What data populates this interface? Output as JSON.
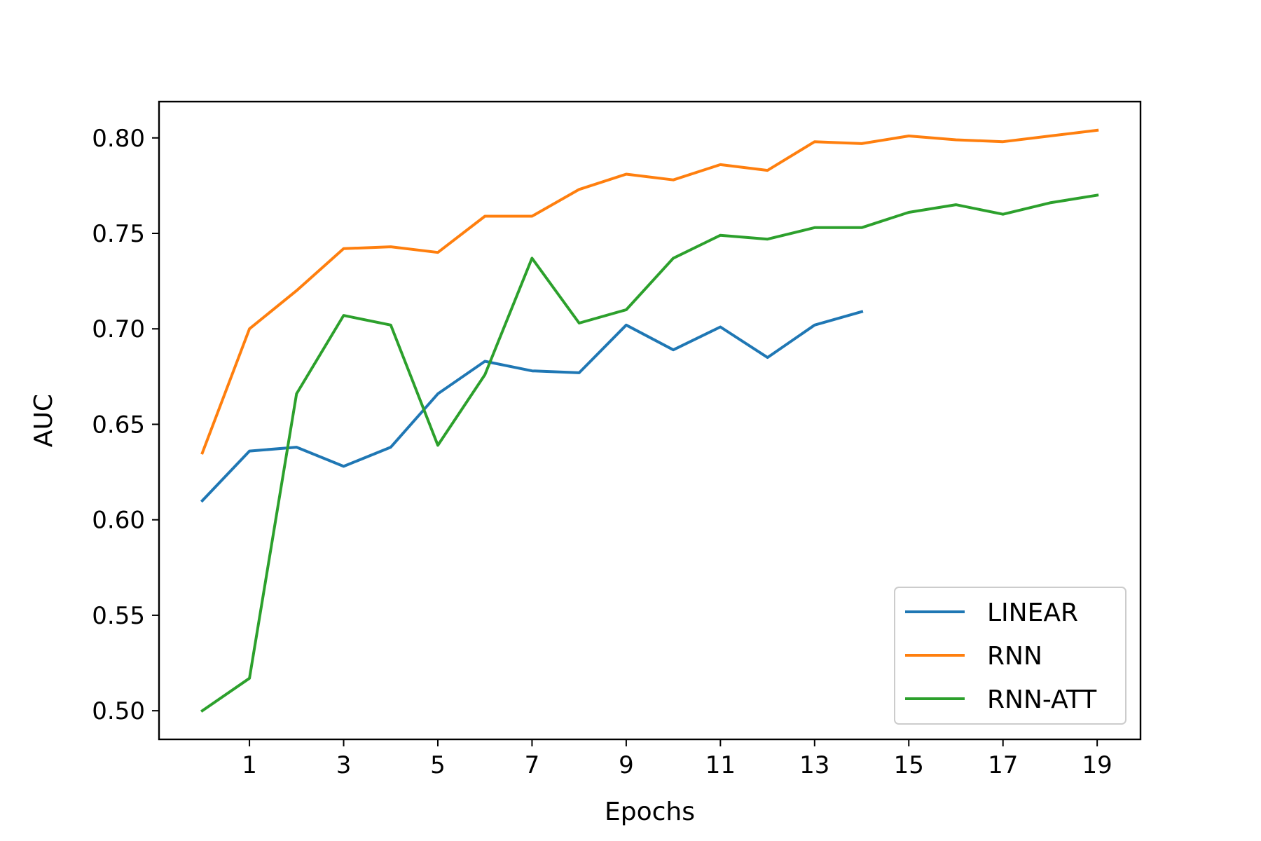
{
  "chart_data": {
    "type": "line",
    "title": "",
    "xlabel": "Epochs",
    "ylabel": "AUC",
    "xlim": [
      -0.92,
      19.92
    ],
    "ylim": [
      0.485,
      0.819
    ],
    "xticks": [
      1,
      3,
      5,
      7,
      9,
      11,
      13,
      15,
      17,
      19
    ],
    "yticks": [
      0.5,
      0.55,
      0.6,
      0.65,
      0.7,
      0.75,
      0.8
    ],
    "grid": false,
    "legend": "lower-right",
    "series": [
      {
        "name": "LINEAR",
        "color": "#1f77b4",
        "x": [
          0,
          1,
          2,
          3,
          4,
          5,
          6,
          7,
          8,
          9,
          10,
          11,
          12,
          13,
          14
        ],
        "y": [
          0.61,
          0.636,
          0.638,
          0.628,
          0.638,
          0.666,
          0.683,
          0.678,
          0.677,
          0.702,
          0.689,
          0.701,
          0.685,
          0.702,
          0.709
        ]
      },
      {
        "name": "RNN",
        "color": "#ff7f0e",
        "x": [
          0,
          1,
          2,
          3,
          4,
          5,
          6,
          7,
          8,
          9,
          10,
          11,
          12,
          13,
          14,
          15,
          16,
          17,
          18,
          19
        ],
        "y": [
          0.635,
          0.7,
          0.72,
          0.742,
          0.743,
          0.74,
          0.759,
          0.759,
          0.773,
          0.781,
          0.778,
          0.786,
          0.783,
          0.798,
          0.797,
          0.801,
          0.799,
          0.798,
          0.801,
          0.804
        ]
      },
      {
        "name": "RNN-ATT",
        "color": "#2ca02c",
        "x": [
          0,
          1,
          2,
          3,
          4,
          5,
          6,
          7,
          8,
          9,
          10,
          11,
          12,
          13,
          14,
          15,
          16,
          17,
          18,
          19
        ],
        "y": [
          0.5,
          0.517,
          0.666,
          0.707,
          0.702,
          0.639,
          0.676,
          0.737,
          0.703,
          0.71,
          0.737,
          0.749,
          0.747,
          0.753,
          0.753,
          0.761,
          0.765,
          0.76,
          0.766,
          0.77
        ]
      }
    ]
  }
}
